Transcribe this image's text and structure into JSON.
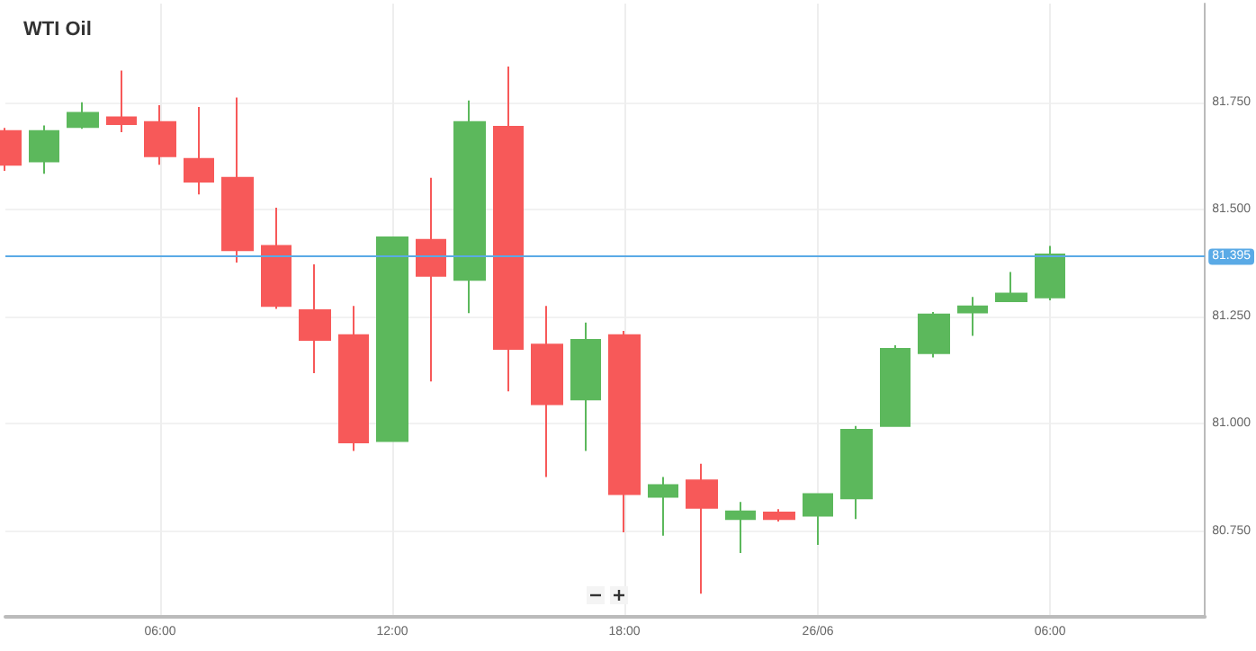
{
  "chart_data": {
    "type": "candlestick",
    "title": "WTI Oil",
    "categories": [
      null,
      null,
      null,
      null,
      "06:00",
      null,
      null,
      null,
      null,
      null,
      "12:00",
      null,
      null,
      null,
      null,
      null,
      "18:00",
      null,
      null,
      null,
      null,
      "26/06",
      null,
      null,
      null,
      null,
      null,
      "06:00",
      null,
      null,
      null,
      null
    ],
    "ohlc": [
      [
        81.683,
        81.69,
        81.59,
        81.604
      ],
      [
        81.612,
        81.696,
        81.583,
        81.683
      ],
      [
        81.692,
        81.75,
        81.688,
        81.725
      ],
      [
        81.715,
        81.824,
        81.68,
        81.699
      ],
      [
        81.704,
        81.743,
        81.604,
        81.624
      ],
      [
        81.618,
        81.739,
        81.535,
        81.565
      ],
      [
        81.574,
        81.761,
        81.376,
        81.405
      ],
      [
        81.415,
        81.504,
        81.268,
        81.275
      ],
      [
        81.265,
        81.372,
        81.118,
        81.196
      ],
      [
        81.207,
        81.275,
        80.937,
        80.957
      ],
      [
        80.96,
        81.435,
        80.96,
        81.435
      ],
      [
        81.429,
        81.574,
        81.099,
        81.345
      ],
      [
        81.336,
        81.754,
        81.258,
        81.704
      ],
      [
        81.693,
        81.833,
        81.076,
        81.175
      ],
      [
        81.185,
        81.275,
        80.876,
        81.046
      ],
      [
        81.057,
        81.236,
        80.937,
        81.196
      ],
      [
        81.207,
        81.217,
        80.747,
        80.836
      ],
      [
        80.83,
        80.876,
        80.739,
        80.857
      ],
      [
        80.868,
        80.907,
        80.604,
        80.804
      ],
      [
        80.778,
        80.818,
        80.699,
        80.796
      ],
      [
        80.793,
        80.801,
        80.772,
        80.778
      ],
      [
        80.786,
        80.836,
        80.718,
        80.836
      ],
      [
        80.826,
        80.995,
        80.778,
        80.986
      ],
      [
        80.995,
        81.183,
        80.995,
        81.175
      ],
      [
        81.165,
        81.261,
        81.155,
        81.255
      ],
      [
        81.26,
        81.296,
        81.205,
        81.274
      ],
      [
        81.286,
        81.354,
        81.286,
        81.304
      ],
      [
        81.295,
        81.415,
        81.288,
        81.395
      ],
      null,
      null,
      null,
      null
    ],
    "colors": [
      "#f75959",
      "#5cb85c",
      "#5cb85c",
      "#f75959",
      "#f75959",
      "#f75959",
      "#f75959",
      "#f75959",
      "#f75959",
      "#f75959",
      "#5cb85c",
      "#f75959",
      "#5cb85c",
      "#f75959",
      "#f75959",
      "#5cb85c",
      "#f75959",
      "#5cb85c",
      "#f75959",
      "#5cb85c",
      "#f75959",
      "#5cb85c",
      "#5cb85c",
      "#5cb85c",
      "#5cb85c",
      "#5cb85c",
      "#5cb85c",
      "#5cb85c",
      null,
      null,
      null,
      null
    ],
    "ylim": [
      80.55,
      81.98
    ],
    "yticks": [
      {
        "value": 80.75,
        "label": "80.750"
      },
      {
        "value": 81,
        "label": "81.000"
      },
      {
        "value": 81.25,
        "label": "81.250"
      },
      {
        "value": 81.5,
        "label": "81.500"
      },
      {
        "value": 81.75,
        "label": "81.750"
      }
    ],
    "ref_lines": [
      {
        "axis": "y",
        "value": 81.395,
        "label": "81.395",
        "color": "#5aaae6"
      }
    ],
    "grid": true
  }
}
